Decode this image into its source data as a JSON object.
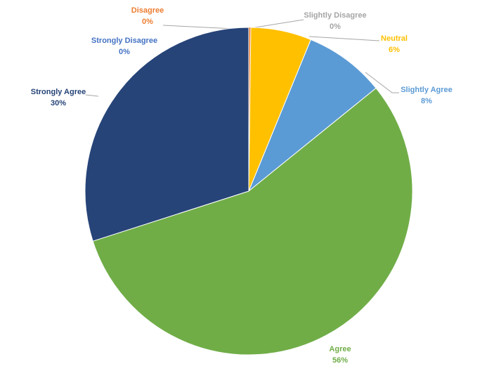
{
  "chart_data": {
    "type": "pie",
    "categories": [
      "Disagree",
      "Slightly Disagree",
      "Neutral",
      "Slightly Agree",
      "Agree",
      "Strongly Agree",
      "Strongly Disagree"
    ],
    "values": [
      0.2,
      0,
      6,
      8,
      56,
      30,
      0
    ],
    "value_labels": [
      "0%",
      "0%",
      "6%",
      "8%",
      "56%",
      "30%",
      "0%"
    ],
    "colors": [
      "#ed7d31",
      "#a5a5a5",
      "#ffc000",
      "#5b9bd5",
      "#70ad47",
      "#264478",
      "#4472c4"
    ]
  }
}
